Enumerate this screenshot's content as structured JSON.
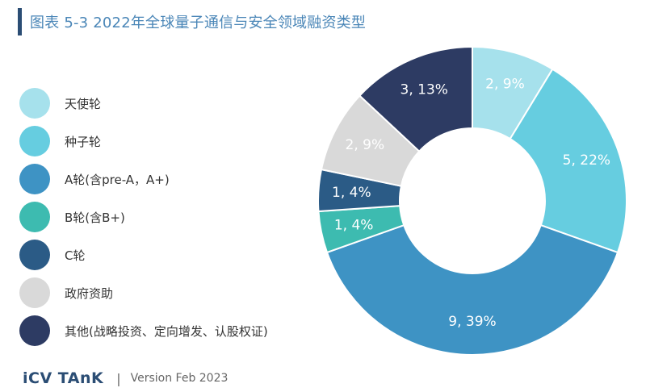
{
  "title": "图表 5-3 2022年全球量子通信与安全领域融资类型",
  "footer": {
    "brand": "iCV TAnK",
    "separator": "|",
    "version": "Version Feb 2023"
  },
  "chart_data": {
    "type": "pie",
    "style": "donut",
    "title": "图表 5-3 2022年全球量子通信与安全领域融资类型",
    "legend_position": "left",
    "categories": [
      "天使轮",
      "种子轮",
      "A轮(含pre-A，A+)",
      "B轮(含B+)",
      "C轮",
      "政府资助",
      "其他(战略投资、定向增发、认股权证)"
    ],
    "values": [
      2,
      5,
      9,
      1,
      1,
      2,
      3
    ],
    "percents": [
      9,
      22,
      39,
      4,
      4,
      9,
      13
    ],
    "slice_labels": [
      "2, 9%",
      "5, 22%",
      "9, 39%",
      "1, 4%",
      "1, 4%",
      "2, 9%",
      "3, 13%"
    ],
    "colors": [
      "#a6e1ec",
      "#66cde0",
      "#3e93c4",
      "#3dbbb0",
      "#2b5b86",
      "#d9d9d9",
      "#2d3b63"
    ]
  }
}
